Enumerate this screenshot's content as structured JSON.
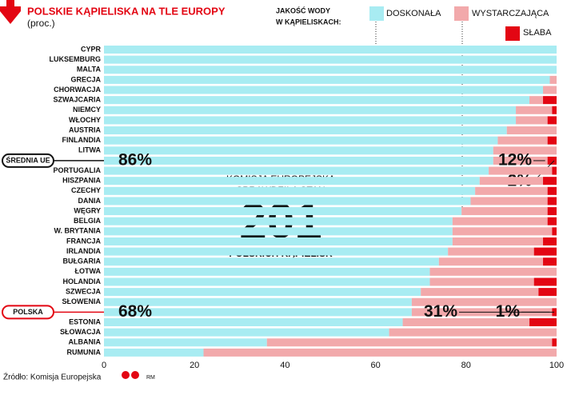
{
  "chart_data": {
    "type": "stacked-bar-horizontal",
    "title": "POLSKIE KĄPIELISKA NA TLE EUROPY",
    "subtitle": "(proc.)",
    "legend_title": [
      "JAKOŚĆ WODY",
      "W KĄPIELISKACH:"
    ],
    "categories": [
      "CYPR",
      "LUKSEMBURG",
      "MALTA",
      "GRECJA",
      "CHORWACJA",
      "SZWAJCARIA",
      "NIEMCY",
      "WŁOCHY",
      "AUSTRIA",
      "FINLANDIA",
      "LITWA",
      "ŚREDNIA UE",
      "PORTUGALIA",
      "HISZPANIA",
      "CZECHY",
      "DANIA",
      "WĘGRY",
      "BELGIA",
      "W. BRYTANIA",
      "FRANCJA",
      "IRLANDIA",
      "BUŁGARIA",
      "ŁOTWA",
      "HOLANDIA",
      "SZWECJA",
      "SŁOWENIA",
      "POLSKA",
      "ESTONIA",
      "SŁOWACJA",
      "ALBANIA",
      "RUMUNIA"
    ],
    "series": [
      {
        "name": "DOSKONAŁA",
        "color": "#a8ecf2",
        "values": [
          100,
          100,
          100,
          98.5,
          97,
          94,
          91,
          91,
          89,
          87,
          86,
          86,
          85,
          83,
          82,
          81,
          79,
          77,
          77,
          77,
          76,
          74,
          72,
          72,
          70,
          68,
          68,
          66,
          63,
          36,
          22
        ],
        "value_labels": [
          null,
          null,
          null,
          null,
          null,
          null,
          null,
          null,
          null,
          null,
          null,
          "86%",
          null,
          null,
          null,
          null,
          null,
          null,
          null,
          null,
          null,
          null,
          null,
          null,
          null,
          null,
          "68%",
          null,
          null,
          null,
          null
        ]
      },
      {
        "name": "WYSTARCZAJĄCA",
        "color": "#f2a9ab",
        "values": [
          0,
          0,
          0,
          1.5,
          3,
          3,
          8,
          7,
          11,
          11,
          14,
          12,
          14,
          14,
          16,
          17,
          19,
          21,
          22,
          20,
          19,
          23,
          28,
          23,
          26,
          32,
          31,
          28,
          37,
          63,
          78
        ],
        "value_labels": [
          null,
          null,
          null,
          null,
          null,
          null,
          null,
          null,
          null,
          null,
          null,
          "12%",
          null,
          null,
          null,
          null,
          null,
          null,
          null,
          null,
          null,
          null,
          null,
          null,
          null,
          null,
          "31%",
          null,
          null,
          null,
          null
        ]
      },
      {
        "name": "SŁABA",
        "color": "#e30613",
        "values": [
          0,
          0,
          0,
          0,
          0,
          3,
          1,
          2,
          0,
          2,
          0,
          2,
          1,
          3,
          2,
          2,
          2,
          2,
          1,
          3,
          5,
          3,
          0,
          5,
          4,
          0,
          1,
          6,
          0,
          1,
          0
        ],
        "value_labels": [
          null,
          null,
          null,
          null,
          null,
          null,
          null,
          null,
          null,
          null,
          null,
          "2%",
          null,
          null,
          null,
          null,
          null,
          null,
          null,
          null,
          null,
          null,
          null,
          null,
          null,
          null,
          "1%",
          null,
          null,
          null,
          null
        ]
      }
    ],
    "xlim": [
      0,
      100
    ],
    "xticks": [
      0,
      20,
      40,
      60,
      80,
      100
    ],
    "annotation": {
      "line1": "KOMISJA EUROPEJSKA",
      "line2": "SPRAWDZIŁA STAN",
      "number": "201",
      "line3": "POLSKICH KĄPIELISK"
    },
    "source": "Źródło: Komisja Europejska",
    "credit": "RM"
  }
}
